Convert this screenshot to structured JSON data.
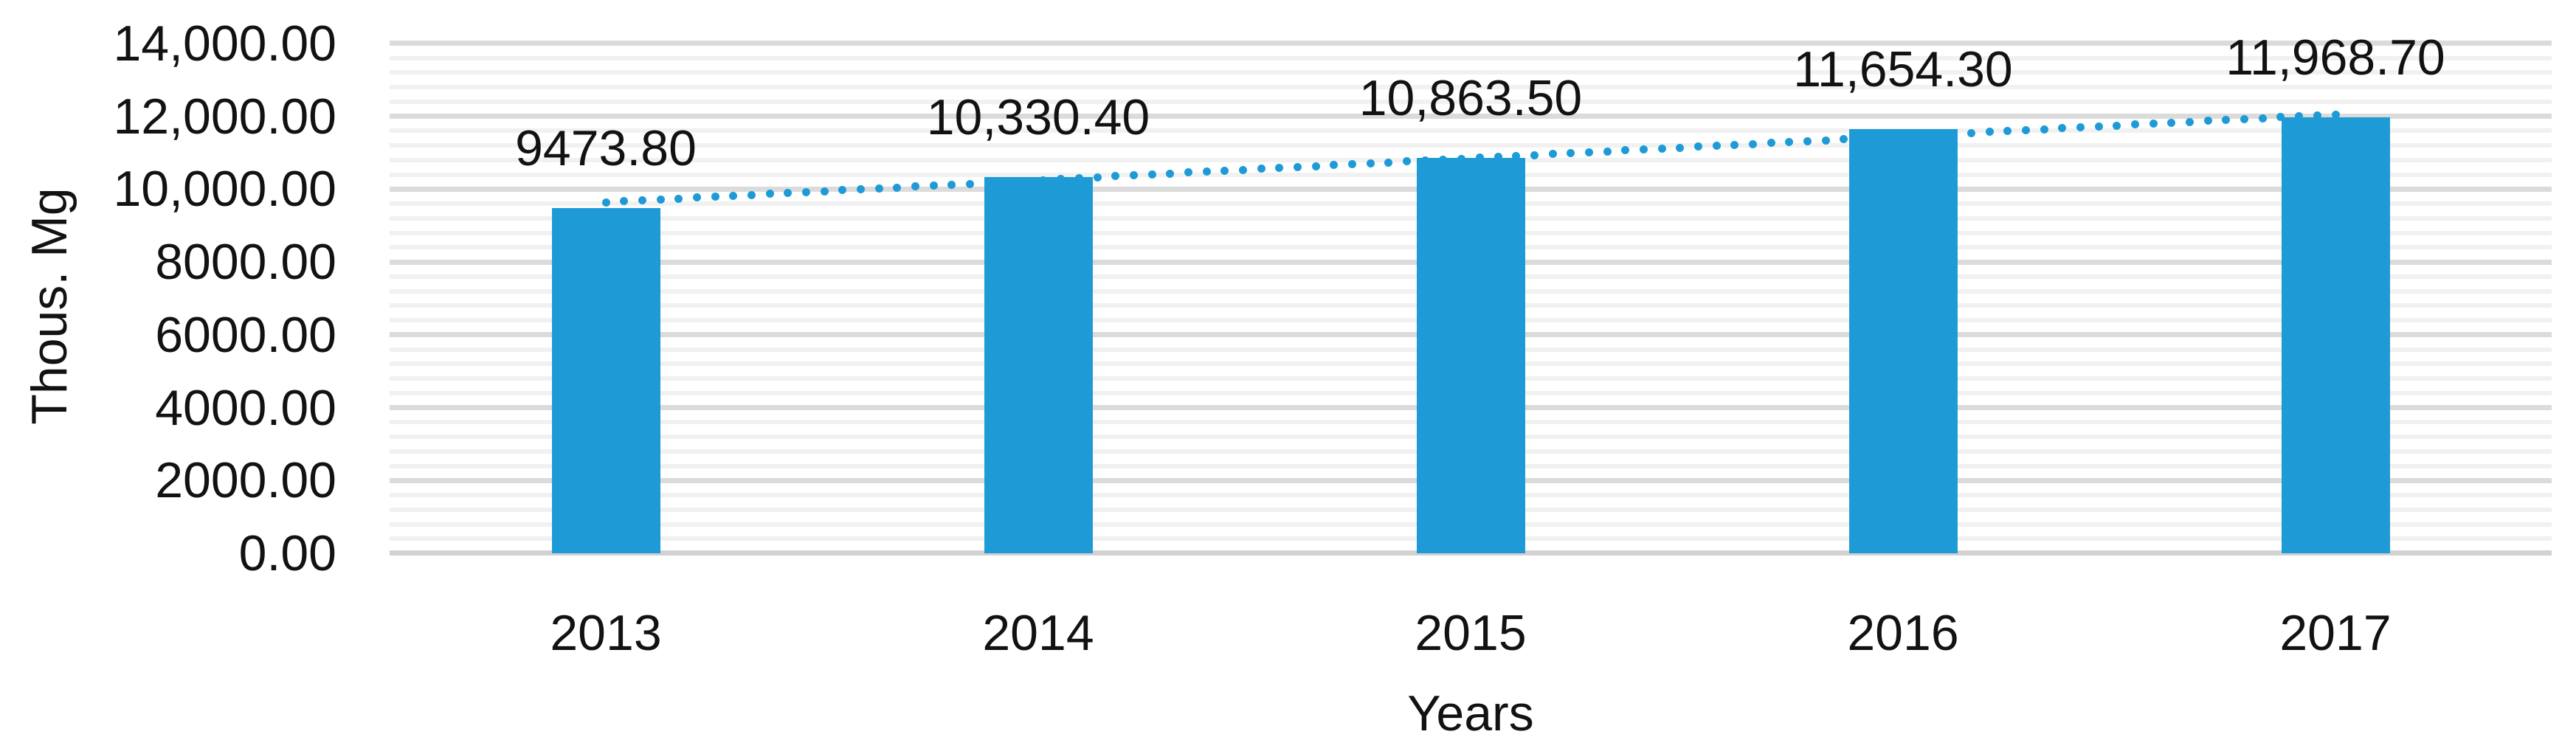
{
  "chart_data": {
    "type": "bar",
    "title": "",
    "categories": [
      "2013",
      "2014",
      "2015",
      "2016",
      "2017"
    ],
    "values": [
      9473.8,
      10330.4,
      10863.5,
      11654.3,
      11968.7
    ],
    "data_labels": [
      "9473.80",
      "10,330.40",
      "10,863.50",
      "11,654.30",
      "11,968.70"
    ],
    "xlabel": "Years",
    "ylabel": "Thous. Mg",
    "ylim": [
      0,
      14000
    ],
    "y_major_unit": 2000,
    "y_minor_unit": 400,
    "y_tick_values": [
      0,
      2000,
      4000,
      6000,
      8000,
      10000,
      12000,
      14000
    ],
    "y_tick_labels": [
      "0.00",
      "2000.00",
      "4000.00",
      "6000.00",
      "8000.00",
      "10,000.00",
      "12,000.00",
      "14,000.00"
    ],
    "grid": "horizontal major + minor stripes",
    "legend": "none",
    "trendline": {
      "style": "dotted",
      "shape": "linear",
      "start_value": 9640,
      "end_value": 12050
    },
    "colors": {
      "bar": "#1E9BD7",
      "trend_dot": "#1E9BD7",
      "major_grid": "#dbdbdb",
      "minor_grid": "#f1f1f1",
      "axis_line": "#d2d2d2",
      "text": "#121212"
    }
  }
}
